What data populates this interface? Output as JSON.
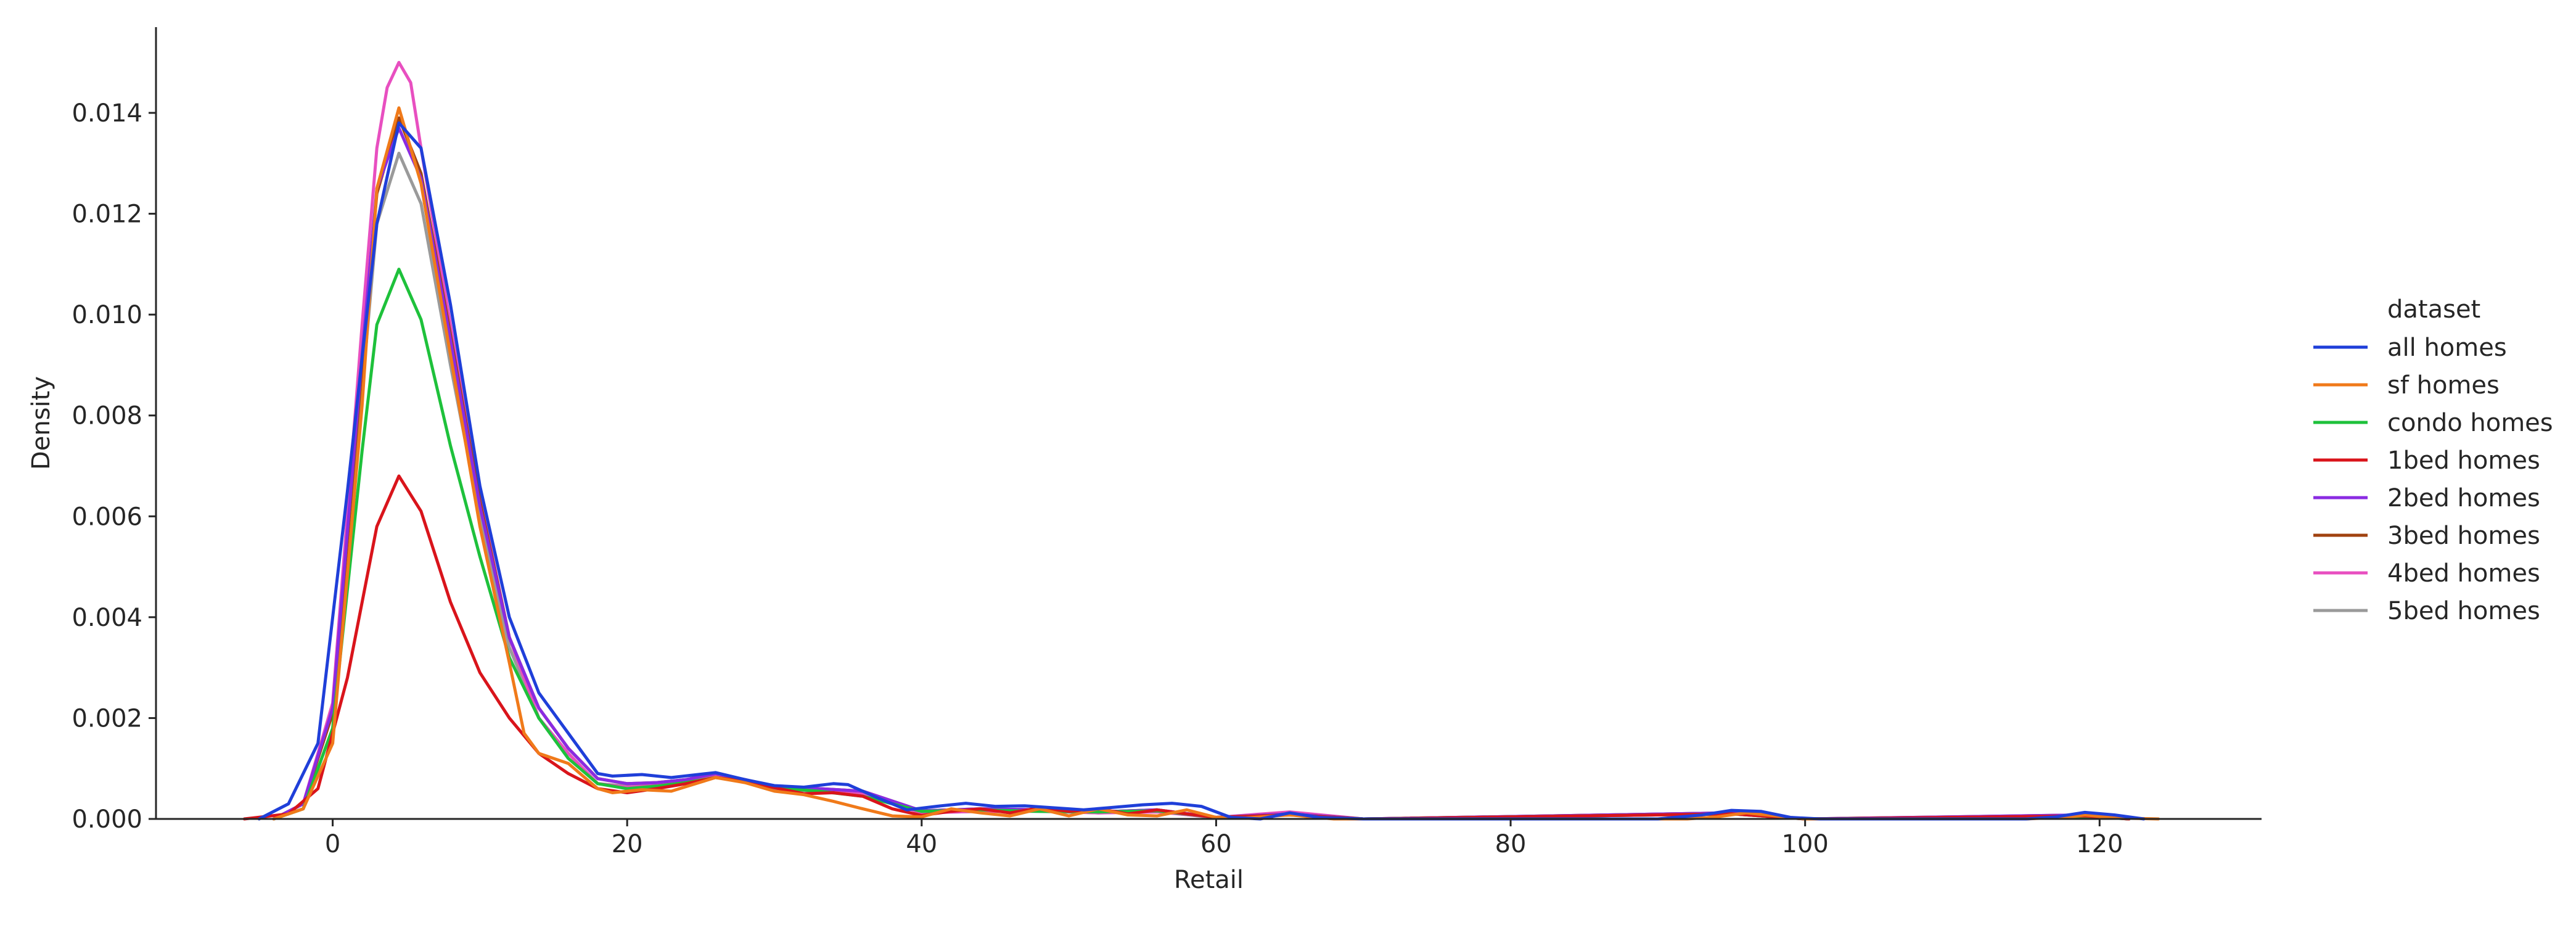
{
  "chart_data": {
    "type": "line",
    "xlabel": "Retail",
    "ylabel": "Density",
    "xlim": [
      -12,
      131
    ],
    "ylim": [
      0,
      0.0157
    ],
    "xticks": [
      "0",
      "20",
      "40",
      "60",
      "80",
      "100",
      "120"
    ],
    "yticks": [
      "0.000",
      "0.002",
      "0.004",
      "0.006",
      "0.008",
      "0.010",
      "0.012",
      "0.014"
    ],
    "legend": {
      "title": "dataset",
      "placement": "right"
    },
    "grid": false,
    "series": [
      {
        "name": "all homes",
        "color": "#1f3fd9",
        "x": [
          -5,
          -3,
          -1,
          1,
          3,
          4.5,
          6,
          8,
          10,
          12,
          14,
          16,
          18,
          19,
          21,
          23,
          26,
          28,
          30,
          32,
          34,
          35,
          37,
          39,
          41,
          43,
          45,
          47,
          49,
          51,
          53,
          55,
          57,
          59,
          61,
          63,
          65,
          67,
          70,
          90,
          93,
          95,
          97,
          99,
          101,
          115,
          117,
          119,
          121,
          123
        ],
        "y": [
          0,
          0.0003,
          0.0015,
          0.0065,
          0.0118,
          0.0138,
          0.0133,
          0.0102,
          0.0066,
          0.004,
          0.0025,
          0.0017,
          0.0009,
          0.00085,
          0.00088,
          0.00082,
          0.00092,
          0.00078,
          0.00066,
          0.00063,
          0.0007,
          0.00068,
          0.00042,
          0.00018,
          0.00025,
          0.00031,
          0.00025,
          0.00026,
          0.00022,
          0.00018,
          0.00023,
          0.00028,
          0.00031,
          0.00025,
          3e-05,
          0,
          0.00012,
          3e-05,
          0,
          0,
          8e-05,
          0.00017,
          0.00015,
          3e-05,
          0,
          0,
          4e-05,
          0.00013,
          8e-05,
          0
        ]
      },
      {
        "name": "sf homes",
        "color": "#f07a1a",
        "x": [
          -4,
          -2,
          0,
          2,
          3,
          4.5,
          6,
          8,
          10,
          12,
          13,
          14,
          16,
          18,
          19,
          21,
          23,
          26,
          28,
          30,
          32,
          34,
          36,
          38,
          40,
          42,
          44,
          46,
          48,
          50,
          52,
          54,
          56,
          58,
          60,
          62,
          65,
          68,
          92,
          94,
          96,
          98,
          100,
          115,
          118,
          119,
          121,
          124
        ],
        "y": [
          0,
          0.0002,
          0.0015,
          0.0082,
          0.0125,
          0.0141,
          0.0126,
          0.0092,
          0.0058,
          0.0031,
          0.0017,
          0.0013,
          0.0011,
          0.0006,
          0.00052,
          0.00058,
          0.00055,
          0.00082,
          0.00072,
          0.00055,
          0.00048,
          0.00035,
          0.0002,
          6e-05,
          4e-05,
          0.0002,
          0.00012,
          6e-05,
          0.0002,
          6e-05,
          0.0002,
          8e-05,
          6e-05,
          0.00018,
          3e-05,
          2e-05,
          8e-05,
          0,
          0,
          4e-05,
          0.00012,
          6e-05,
          0,
          0,
          4e-05,
          8e-05,
          2e-05,
          0
        ]
      },
      {
        "name": "condo homes",
        "color": "#1ec13b",
        "x": [
          -4,
          -2,
          0,
          2,
          3,
          4.5,
          6,
          8,
          10,
          12,
          14,
          16,
          18,
          20,
          22,
          24,
          26,
          28,
          30,
          33,
          36,
          40,
          44,
          48,
          52,
          56,
          60,
          65,
          70,
          95,
          100,
          119,
          122
        ],
        "y": [
          0,
          0.0002,
          0.0018,
          0.0073,
          0.0098,
          0.0109,
          0.0099,
          0.0074,
          0.0052,
          0.0032,
          0.002,
          0.0012,
          0.0007,
          0.0006,
          0.00065,
          0.00072,
          0.00082,
          0.00075,
          0.00062,
          0.00055,
          0.00045,
          0.00015,
          0.00018,
          0.00015,
          0.00014,
          0.00016,
          3e-05,
          8e-05,
          0,
          0.0001,
          0,
          5e-05,
          0
        ]
      },
      {
        "name": "1bed homes",
        "color": "#d9141b",
        "x": [
          -6,
          -3,
          -1,
          1,
          3,
          4.5,
          6,
          8,
          10,
          12,
          14,
          16,
          18,
          20,
          22,
          24,
          26,
          28,
          30,
          32,
          34,
          36,
          38,
          40,
          42,
          44,
          46,
          48,
          50,
          52,
          54,
          56,
          58,
          60,
          65,
          70,
          95,
          100,
          119,
          122
        ],
        "y": [
          0,
          0.0001,
          0.0006,
          0.0028,
          0.0058,
          0.0068,
          0.0061,
          0.0043,
          0.0029,
          0.002,
          0.0013,
          0.0009,
          0.0006,
          0.00052,
          0.0006,
          0.0007,
          0.00082,
          0.00075,
          0.00062,
          0.0005,
          0.00052,
          0.00045,
          0.0002,
          7e-05,
          0.00015,
          0.0002,
          0.00012,
          0.00022,
          0.00015,
          0.0002,
          0.0001,
          0.00018,
          0.0001,
          3e-05,
          8e-05,
          0,
          0.0001,
          0,
          6e-05,
          0
        ]
      },
      {
        "name": "2bed homes",
        "color": "#8a2be2",
        "x": [
          -4,
          -2,
          0,
          2,
          3,
          4.5,
          6,
          8,
          10,
          12,
          14,
          16,
          18,
          20,
          22,
          24,
          26,
          28,
          30,
          33,
          36,
          40,
          44,
          48,
          52,
          56,
          60,
          65,
          70,
          95,
          100,
          119,
          122
        ],
        "y": [
          0,
          0.0003,
          0.0022,
          0.0092,
          0.0125,
          0.0137,
          0.0127,
          0.0095,
          0.0062,
          0.0036,
          0.0022,
          0.0014,
          0.0008,
          0.0007,
          0.00072,
          0.00078,
          0.0009,
          0.00078,
          0.00064,
          0.0006,
          0.00055,
          0.00016,
          0.0002,
          0.00018,
          0.00014,
          0.00018,
          3e-05,
          0.0001,
          0,
          0.00012,
          0,
          8e-05,
          0
        ]
      },
      {
        "name": "3bed homes",
        "color": "#a0420f",
        "x": [
          -4,
          -2,
          0,
          2,
          3,
          4.5,
          6,
          8,
          10,
          12,
          14,
          16,
          18,
          20,
          22,
          24,
          26,
          28,
          30,
          33,
          36,
          40,
          44,
          48,
          52,
          56,
          60,
          65,
          70,
          95,
          100,
          119,
          122
        ],
        "y": [
          0,
          0.0003,
          0.0021,
          0.009,
          0.0124,
          0.0139,
          0.0128,
          0.0096,
          0.0063,
          0.0036,
          0.0022,
          0.0014,
          0.0008,
          0.0007,
          0.00072,
          0.00078,
          0.0009,
          0.00078,
          0.00064,
          0.0006,
          0.00055,
          0.00016,
          0.0002,
          0.00018,
          0.00014,
          0.00018,
          3e-05,
          0.0001,
          0,
          0.00012,
          0,
          8e-05,
          0
        ]
      },
      {
        "name": "4bed homes",
        "color": "#e84fc0",
        "x": [
          -4,
          -2,
          0,
          2,
          3,
          3.7,
          4.5,
          5.3,
          6,
          8,
          10,
          12,
          14,
          16,
          18,
          20,
          22,
          24,
          26,
          28,
          30,
          33,
          36,
          40,
          44,
          48,
          52,
          56,
          60,
          65,
          70,
          95,
          100,
          119,
          122
        ],
        "y": [
          0,
          0.0003,
          0.0023,
          0.0098,
          0.0133,
          0.0145,
          0.015,
          0.0146,
          0.0133,
          0.0098,
          0.0064,
          0.0036,
          0.002,
          0.0013,
          0.0007,
          0.00063,
          0.00066,
          0.00072,
          0.00085,
          0.00078,
          0.00062,
          0.00055,
          0.0005,
          0.00012,
          0.00015,
          0.00016,
          0.00012,
          0.00014,
          3e-05,
          0.00014,
          0,
          0.00012,
          0,
          6e-05,
          0
        ]
      },
      {
        "name": "5bed homes",
        "color": "#9a9a9a",
        "x": [
          -4,
          -2,
          0,
          2,
          3,
          4.5,
          6,
          8,
          10,
          12,
          14,
          16,
          18,
          20,
          24,
          26,
          30,
          36,
          40,
          44,
          48,
          52,
          56,
          60,
          65,
          70,
          95,
          100,
          119,
          122
        ],
        "y": [
          0,
          0.0002,
          0.0018,
          0.0085,
          0.0118,
          0.0132,
          0.0122,
          0.009,
          0.006,
          0.0034,
          0.002,
          0.0013,
          0.0007,
          0.00065,
          0.00075,
          0.00085,
          0.0006,
          0.0005,
          0.00012,
          0.00015,
          0.00015,
          0.00012,
          0.00015,
          2e-05,
          0.0001,
          0,
          0.0001,
          0,
          6e-05,
          0
        ]
      }
    ]
  }
}
